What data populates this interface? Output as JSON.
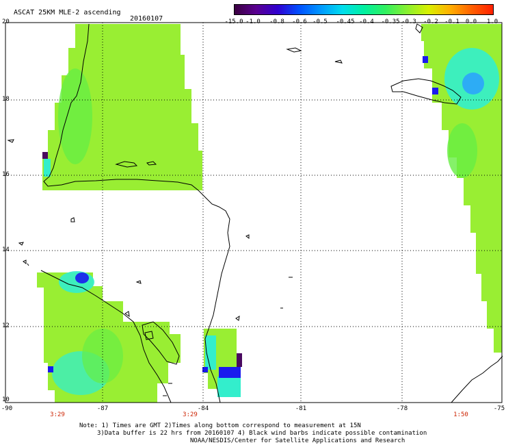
{
  "header": {
    "title": "ASCAT 25KM MLE-2 ascending",
    "date": "20160107"
  },
  "colorbar": {
    "labels": [
      "-15.0",
      "-1.0",
      "-0.8",
      "-0.6",
      "-0.5",
      "-0.45",
      "-0.4",
      "-0.35",
      "-0.3",
      "-0.2",
      "-0.1",
      "0.0",
      "1.0"
    ],
    "colors": [
      "#3a0040",
      "#5a0090",
      "#3000d0",
      "#0050ff",
      "#0098ff",
      "#00ddee",
      "#00f0a0",
      "#30f060",
      "#88f030",
      "#d8f000",
      "#ffb000",
      "#ff6000",
      "#ff2000"
    ]
  },
  "axes": {
    "y_labels": [
      "20",
      "18",
      "16",
      "14",
      "12",
      "10"
    ],
    "x_labels": [
      "-90",
      "-87",
      "-84",
      "-81",
      "-78",
      "-75"
    ],
    "time_labels": [
      "3:29",
      "3:29",
      "1:50"
    ]
  },
  "notes": {
    "line1": "Note: 1) Times are GMT 2)Times along bottom correspond to measurement at 15N",
    "line2": "3)Data buffer is 22 hrs from 20160107 4) Black wind barbs indicate possible contamination",
    "line3": "NOAA/NESDIS/Center for Satellite Applications and Research"
  },
  "legend_colors": {
    "main_green": "#99ee33",
    "green2": "#66ee44",
    "cyan": "#33eecc",
    "blue": "#1a1aee",
    "purple": "#4a0a60"
  }
}
